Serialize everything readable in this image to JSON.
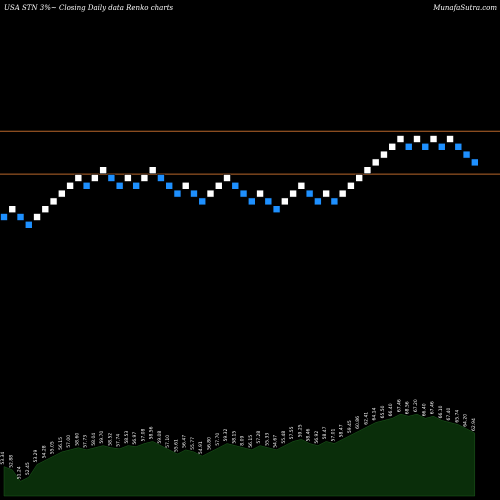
{
  "header": {
    "left": "USA STN 3%~ Closing Daily data Renko charts",
    "right": "MunafaSutra.com"
  },
  "colors": {
    "background": "#000000",
    "up_brick": "#ffffff",
    "down_brick": "#1e90ff",
    "reference_line": "#b8662a",
    "volume_fill": "#0a2e0a"
  },
  "chart_data": {
    "type": "renko",
    "title": "",
    "xlabel": "",
    "ylabel": "",
    "reference_lines": [
      11,
      5.5
    ],
    "bricks": [
      {
        "level": 0,
        "dir": "down"
      },
      {
        "level": 1,
        "dir": "up"
      },
      {
        "level": 0,
        "dir": "down"
      },
      {
        "level": -1,
        "dir": "down"
      },
      {
        "level": 0,
        "dir": "up"
      },
      {
        "level": 1,
        "dir": "up"
      },
      {
        "level": 2,
        "dir": "up"
      },
      {
        "level": 3,
        "dir": "up"
      },
      {
        "level": 4,
        "dir": "up"
      },
      {
        "level": 5,
        "dir": "up"
      },
      {
        "level": 4,
        "dir": "down"
      },
      {
        "level": 5,
        "dir": "up"
      },
      {
        "level": 6,
        "dir": "up"
      },
      {
        "level": 5,
        "dir": "down"
      },
      {
        "level": 4,
        "dir": "down"
      },
      {
        "level": 5,
        "dir": "up"
      },
      {
        "level": 4,
        "dir": "down"
      },
      {
        "level": 5,
        "dir": "up"
      },
      {
        "level": 6,
        "dir": "up"
      },
      {
        "level": 5,
        "dir": "down"
      },
      {
        "level": 4,
        "dir": "down"
      },
      {
        "level": 3,
        "dir": "down"
      },
      {
        "level": 4,
        "dir": "up"
      },
      {
        "level": 3,
        "dir": "down"
      },
      {
        "level": 2,
        "dir": "down"
      },
      {
        "level": 3,
        "dir": "up"
      },
      {
        "level": 4,
        "dir": "up"
      },
      {
        "level": 5,
        "dir": "up"
      },
      {
        "level": 4,
        "dir": "down"
      },
      {
        "level": 3,
        "dir": "down"
      },
      {
        "level": 2,
        "dir": "down"
      },
      {
        "level": 3,
        "dir": "up"
      },
      {
        "level": 2,
        "dir": "down"
      },
      {
        "level": 1,
        "dir": "down"
      },
      {
        "level": 2,
        "dir": "up"
      },
      {
        "level": 3,
        "dir": "up"
      },
      {
        "level": 4,
        "dir": "up"
      },
      {
        "level": 3,
        "dir": "down"
      },
      {
        "level": 2,
        "dir": "down"
      },
      {
        "level": 3,
        "dir": "up"
      },
      {
        "level": 2,
        "dir": "down"
      },
      {
        "level": 3,
        "dir": "up"
      },
      {
        "level": 4,
        "dir": "up"
      },
      {
        "level": 5,
        "dir": "up"
      },
      {
        "level": 6,
        "dir": "up"
      },
      {
        "level": 7,
        "dir": "up"
      },
      {
        "level": 8,
        "dir": "up"
      },
      {
        "level": 9,
        "dir": "up"
      },
      {
        "level": 10,
        "dir": "up"
      },
      {
        "level": 9,
        "dir": "down"
      },
      {
        "level": 10,
        "dir": "up"
      },
      {
        "level": 9,
        "dir": "down"
      },
      {
        "level": 10,
        "dir": "up"
      },
      {
        "level": 9,
        "dir": "down"
      },
      {
        "level": 10,
        "dir": "up"
      },
      {
        "level": 9,
        "dir": "down"
      },
      {
        "level": 8,
        "dir": "down"
      },
      {
        "level": 7,
        "dir": "down"
      }
    ],
    "volume": {
      "values": [
        28,
        25,
        14,
        18,
        30,
        34,
        38,
        42,
        44,
        46,
        44,
        46,
        48,
        46,
        45,
        48,
        47,
        50,
        52,
        48,
        44,
        40,
        44,
        42,
        38,
        42,
        46,
        50,
        48,
        46,
        44,
        48,
        46,
        44,
        48,
        52,
        54,
        50,
        48,
        52,
        50,
        54,
        58,
        62,
        66,
        70,
        72,
        74,
        78,
        76,
        78,
        74,
        76,
        72,
        70,
        68,
        64,
        60
      ],
      "labels": [
        "53.34",
        "52.88",
        "51.24",
        "52.45",
        "53.29",
        "54.28",
        "55.05",
        "56.15",
        "57.00",
        "58.60",
        "57.73",
        "58.04",
        "59.70",
        "58.52",
        "57.74",
        "58.53",
        "56.97",
        "57.08",
        "58.56",
        "59.08",
        "57.10",
        "55.61",
        "56.47",
        "55.77",
        "54.91",
        "56.80",
        "57.70",
        "59.32",
        "58.15",
        "8.09",
        "56.15",
        "57.28",
        "55.33",
        "54.67",
        "55.48",
        "57.55",
        "59.25",
        "58.46",
        "56.92",
        "58.47",
        "57.01",
        "58.47",
        "59.45",
        "60.86",
        "62.41",
        "64.14",
        "65.50",
        "66.40",
        "67.46",
        "68.56",
        "67.20",
        "66.40",
        "67.46",
        "66.10",
        "67.40",
        "65.74",
        "64.20",
        "62.94"
      ]
    }
  }
}
